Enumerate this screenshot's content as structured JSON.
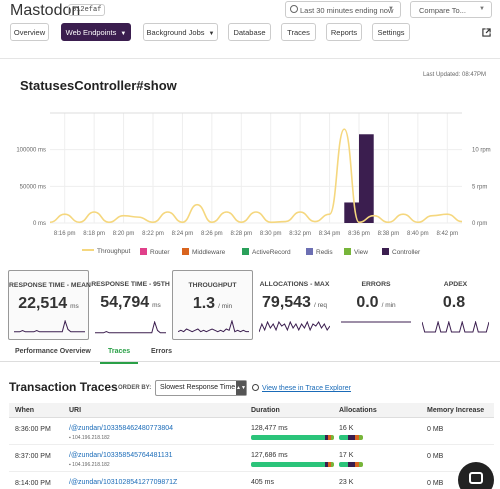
{
  "header": {
    "app_name": "Mastodon",
    "app_sha": "612efaf",
    "time_range": "Last 30 minutes ending now",
    "compare_placeholder": "Compare To...",
    "nav": [
      {
        "label": "Overview"
      },
      {
        "label": "Web Endpoints"
      },
      {
        "label": "Background Jobs"
      },
      {
        "label": "Database"
      },
      {
        "label": "Traces"
      },
      {
        "label": "Reports"
      },
      {
        "label": "Settings"
      }
    ]
  },
  "chart_panel": {
    "title": "StatusesController#show",
    "last_updated": "Last Updated: 08:47PM"
  },
  "chart_data": {
    "type": "bar",
    "title": "StatusesController#show",
    "x_ticks": [
      "8:16 pm",
      "8:18 pm",
      "8:20 pm",
      "8:22 pm",
      "8:24 pm",
      "8:26 pm",
      "8:28 pm",
      "8:30 pm",
      "8:32 pm",
      "8:34 pm",
      "8:36 pm",
      "8:38 pm",
      "8:40 pm",
      "8:42 pm"
    ],
    "y_left_ticks": [
      "0 ms",
      "50000 ms",
      "100000 ms"
    ],
    "y_right_ticks": [
      "0 rpm",
      "5 rpm",
      "10 rpm"
    ],
    "y_left_range": [
      0,
      150000
    ],
    "y_right_range": [
      0,
      15
    ],
    "throughput_rpm": [
      {
        "t": "8:15 pm",
        "v": 0.1
      },
      {
        "t": "8:16 pm",
        "v": 1.2
      },
      {
        "t": "8:17 pm",
        "v": 0.1
      },
      {
        "t": "8:18 pm",
        "v": 1.5
      },
      {
        "t": "8:19 pm",
        "v": 0.1
      },
      {
        "t": "8:20 pm",
        "v": 1.0
      },
      {
        "t": "8:21 pm",
        "v": 0.8
      },
      {
        "t": "8:22 pm",
        "v": 0.1
      },
      {
        "t": "8:23 pm",
        "v": 1.5
      },
      {
        "t": "8:24 pm",
        "v": 0.1
      },
      {
        "t": "8:25 pm",
        "v": 2.5
      },
      {
        "t": "8:26 pm",
        "v": 0.1
      },
      {
        "t": "8:27 pm",
        "v": 1.5
      },
      {
        "t": "8:28 pm",
        "v": 0.1
      },
      {
        "t": "8:29 pm",
        "v": 1.5
      },
      {
        "t": "8:30 pm",
        "v": 0.1
      },
      {
        "t": "8:31 pm",
        "v": 0.2
      },
      {
        "t": "8:32 pm",
        "v": 1.5
      },
      {
        "t": "8:33 pm",
        "v": 0.2
      },
      {
        "t": "8:34 pm",
        "v": 1.2
      },
      {
        "t": "8:35 pm",
        "v": 12.8
      },
      {
        "t": "8:36 pm",
        "v": 0.1
      },
      {
        "t": "8:37 pm",
        "v": 1.0
      },
      {
        "t": "8:38 pm",
        "v": 0.1
      },
      {
        "t": "8:39 pm",
        "v": 1.2
      },
      {
        "t": "8:40 pm",
        "v": 0.1
      },
      {
        "t": "8:41 pm",
        "v": 1.0
      },
      {
        "t": "8:42 pm",
        "v": 1.2
      },
      {
        "t": "8:43 pm",
        "v": 0.2
      }
    ],
    "controller_ms": [
      {
        "t": "8:35 pm",
        "v": 28000
      },
      {
        "t": "8:36 pm",
        "v": 121000
      }
    ],
    "legend": [
      {
        "name": "Throughput",
        "color": "#f5d77e"
      },
      {
        "name": "Router",
        "color": "#e0408a"
      },
      {
        "name": "Middleware",
        "color": "#d9641e"
      },
      {
        "name": "ActiveRecord",
        "color": "#2aa05a"
      },
      {
        "name": "Redis",
        "color": "#6c6fb3"
      },
      {
        "name": "View",
        "color": "#77b53a"
      },
      {
        "name": "Controller",
        "color": "#3b1e4f"
      }
    ],
    "grid": true,
    "legend_position": "bottom"
  },
  "metrics": [
    {
      "label": "RESPONSE TIME - MEAN",
      "value": "22,514",
      "unit": "ms",
      "spark": [
        1,
        1,
        1,
        2,
        1,
        1,
        1,
        1,
        2,
        1,
        1,
        1,
        1,
        1,
        1,
        1,
        1,
        1,
        10,
        3,
        1,
        1,
        1,
        1,
        1,
        1
      ]
    },
    {
      "label": "RESPONSE TIME - 95TH",
      "value": "54,794",
      "unit": "ms",
      "spark": [
        1,
        1,
        1,
        1,
        2,
        1,
        1,
        1,
        1,
        1,
        1,
        1,
        1,
        1,
        1,
        1,
        1,
        1,
        1,
        1,
        1,
        10,
        3,
        1,
        1,
        1
      ]
    },
    {
      "label": "THROUGHPUT",
      "value": "1.3",
      "unit": "/ min",
      "spark": [
        1,
        2,
        1,
        3,
        2,
        1,
        2,
        3,
        1,
        2,
        1,
        2,
        3,
        2,
        1,
        2,
        1,
        3,
        2,
        9,
        1,
        2,
        1,
        2,
        1,
        1
      ]
    },
    {
      "label": "ALLOCATIONS - MAX",
      "value": "79,543",
      "unit": "/ req",
      "spark": [
        1,
        5,
        2,
        6,
        3,
        5,
        2,
        6,
        4,
        5,
        2,
        6,
        3,
        5,
        2,
        5,
        3,
        6,
        2,
        5,
        4,
        6,
        3,
        5,
        2,
        4
      ]
    },
    {
      "label": "ERRORS",
      "value": "0.0",
      "unit": "/ min",
      "spark": [
        1,
        1,
        1,
        1,
        1,
        1,
        1,
        1,
        1,
        1,
        1,
        1,
        1,
        1,
        1,
        1,
        1,
        1,
        1,
        1,
        1,
        1,
        1,
        1,
        1,
        1
      ]
    },
    {
      "label": "APDEX",
      "value": "0.8",
      "unit": "",
      "spark": [
        6,
        1,
        1,
        1,
        1,
        1,
        6,
        1,
        1,
        1,
        6,
        1,
        1,
        1,
        1,
        6,
        1,
        1,
        1,
        1,
        6,
        1,
        1,
        1,
        1,
        6
      ]
    }
  ],
  "subtabs": [
    {
      "label": "Performance Overview"
    },
    {
      "label": "Traces"
    },
    {
      "label": "Errors"
    }
  ],
  "traces": {
    "title": "Transaction Traces",
    "order_by_label": "ORDER BY:",
    "order_by_value": "Slowest Response Time",
    "explorer_link": "View these in Trace Explorer",
    "columns": [
      "When",
      "URI",
      "Duration",
      "Allocations",
      "Memory Increase"
    ],
    "rows": [
      {
        "when": "8:36:00 PM",
        "uri": "/@zundan/103358462480773804",
        "host": "104.196.218.182",
        "duration": "128,477 ms",
        "allocations": "16 K",
        "memory": "0 MB"
      },
      {
        "when": "8:37:00 PM",
        "uri": "/@zundan/103358545764481131",
        "host": "104.196.218.182",
        "duration": "127,686 ms",
        "allocations": "17 K",
        "memory": "0 MB"
      },
      {
        "when": "8:14:00 PM",
        "uri": "/@zundan/103102854127709871Z",
        "host": "",
        "duration": "405 ms",
        "allocations": "23 K",
        "memory": "0 MB"
      }
    ]
  }
}
